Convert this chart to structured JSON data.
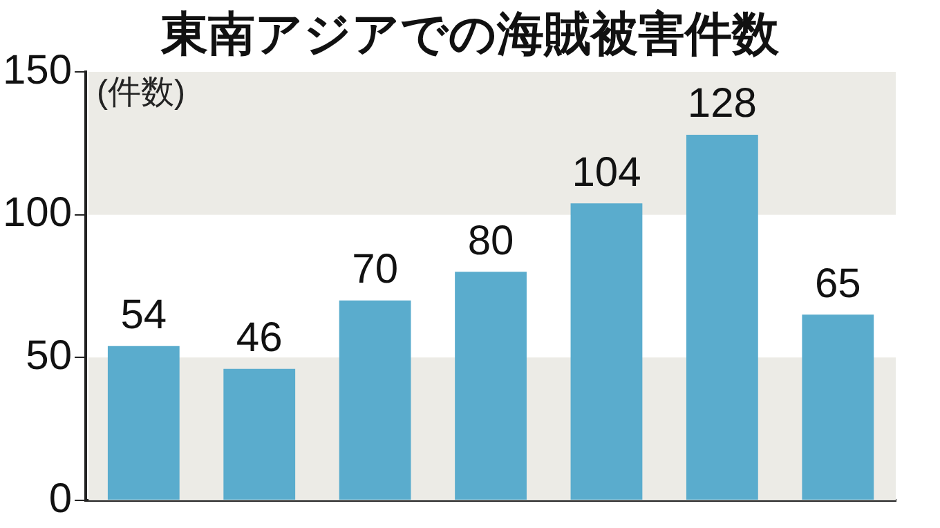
{
  "chart_data": {
    "type": "bar",
    "title": "東南アジアでの海賊被害件数",
    "ylabel": "(件数)",
    "categories": [
      null,
      null,
      null,
      null,
      null,
      null,
      null
    ],
    "values": [
      54,
      46,
      70,
      80,
      104,
      128,
      65
    ],
    "color": "#5aaccd",
    "ylim": [
      0,
      150
    ],
    "yticks": [
      0,
      50,
      100,
      150
    ],
    "grid": false,
    "legend": false,
    "data_labels": true,
    "bands": [
      {
        "axis": "y",
        "from": 0,
        "to": 50,
        "color": "#ecebe6"
      },
      {
        "axis": "y",
        "from": 100,
        "to": 150,
        "color": "#ecebe6"
      }
    ]
  }
}
